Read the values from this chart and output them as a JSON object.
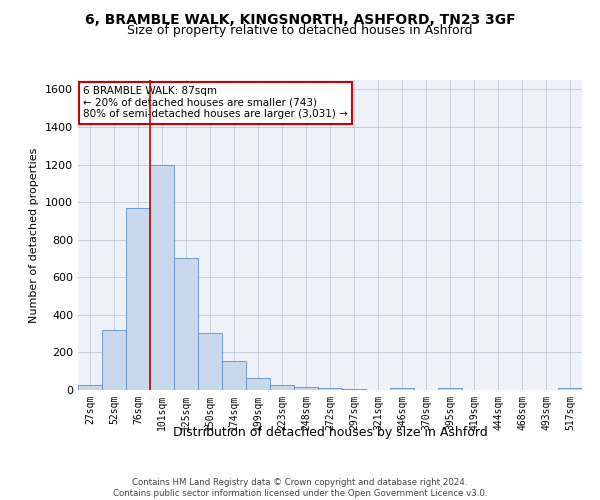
{
  "title_line1": "6, BRAMBLE WALK, KINGSNORTH, ASHFORD, TN23 3GF",
  "title_line2": "Size of property relative to detached houses in Ashford",
  "xlabel": "Distribution of detached houses by size in Ashford",
  "ylabel": "Number of detached properties",
  "categories": [
    "27sqm",
    "52sqm",
    "76sqm",
    "101sqm",
    "125sqm",
    "150sqm",
    "174sqm",
    "199sqm",
    "223sqm",
    "248sqm",
    "272sqm",
    "297sqm",
    "321sqm",
    "346sqm",
    "370sqm",
    "395sqm",
    "419sqm",
    "444sqm",
    "468sqm",
    "493sqm",
    "517sqm"
  ],
  "values": [
    25,
    320,
    970,
    1200,
    700,
    305,
    155,
    65,
    25,
    15,
    10,
    5,
    0,
    10,
    0,
    8,
    0,
    0,
    0,
    0,
    8
  ],
  "bar_color": "#c9d9ed",
  "bar_edge_color": "#5b8fc9",
  "grid_color": "#c0c8d8",
  "background_color": "#eef2f8",
  "vline_x": 2.5,
  "vline_color": "#cc0000",
  "annotation_text": "6 BRAMBLE WALK: 87sqm\n← 20% of detached houses are smaller (743)\n80% of semi-detached houses are larger (3,031) →",
  "annotation_box_color": "#ffffff",
  "annotation_box_edge_color": "#cc0000",
  "ylim": [
    0,
    1650
  ],
  "yticks": [
    0,
    200,
    400,
    600,
    800,
    1000,
    1200,
    1400,
    1600
  ],
  "footer_line1": "Contains HM Land Registry data © Crown copyright and database right 2024.",
  "footer_line2": "Contains public sector information licensed under the Open Government Licence v3.0."
}
